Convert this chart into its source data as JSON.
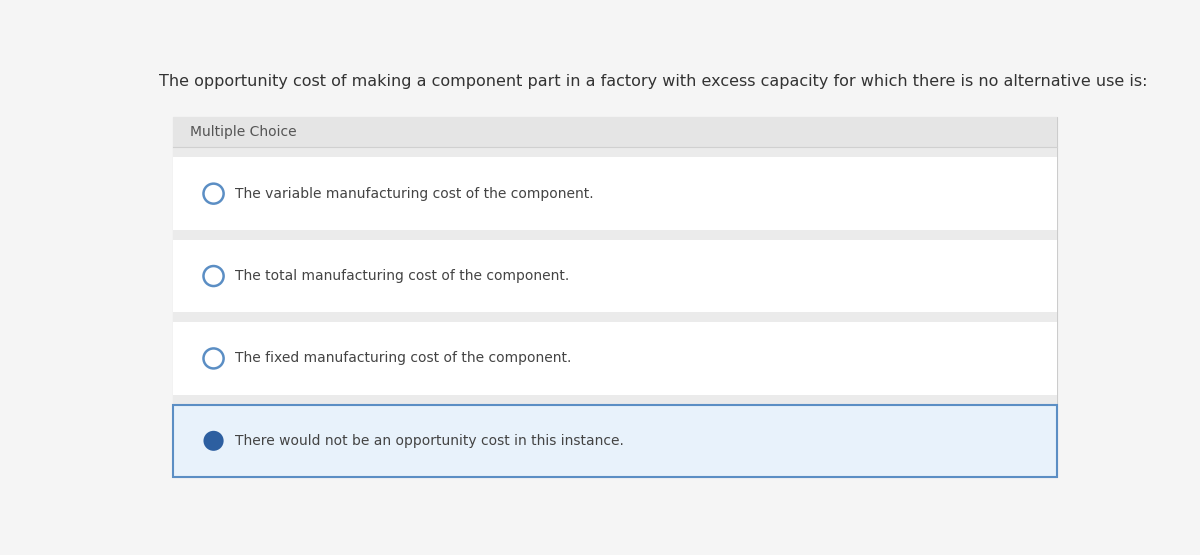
{
  "question": "The opportunity cost of making a component part in a factory with excess capacity for which there is no alternative use is:",
  "question_color": "#333333",
  "question_fontsize": 11.5,
  "label": "Multiple Choice",
  "label_fontsize": 10,
  "label_color": "#555555",
  "outer_bg": "#efefef",
  "white_bg": "#ffffff",
  "selected_bg": "#e8f2fb",
  "selected_border": "#5b8ec4",
  "header_bg": "#e5e5e5",
  "separator_bg": "#ebebeb",
  "choices": [
    "The variable manufacturing cost of the component.",
    "The total manufacturing cost of the component.",
    "The fixed manufacturing cost of the component.",
    "There would not be an opportunity cost in this instance."
  ],
  "selected_index": 3,
  "circle_color_empty": "#5b8ec4",
  "circle_fill_color": "#2d5fa0",
  "choice_fontsize": 10,
  "choice_color": "#444444",
  "fig_bg": "#ffffff",
  "page_bg": "#f5f5f5"
}
